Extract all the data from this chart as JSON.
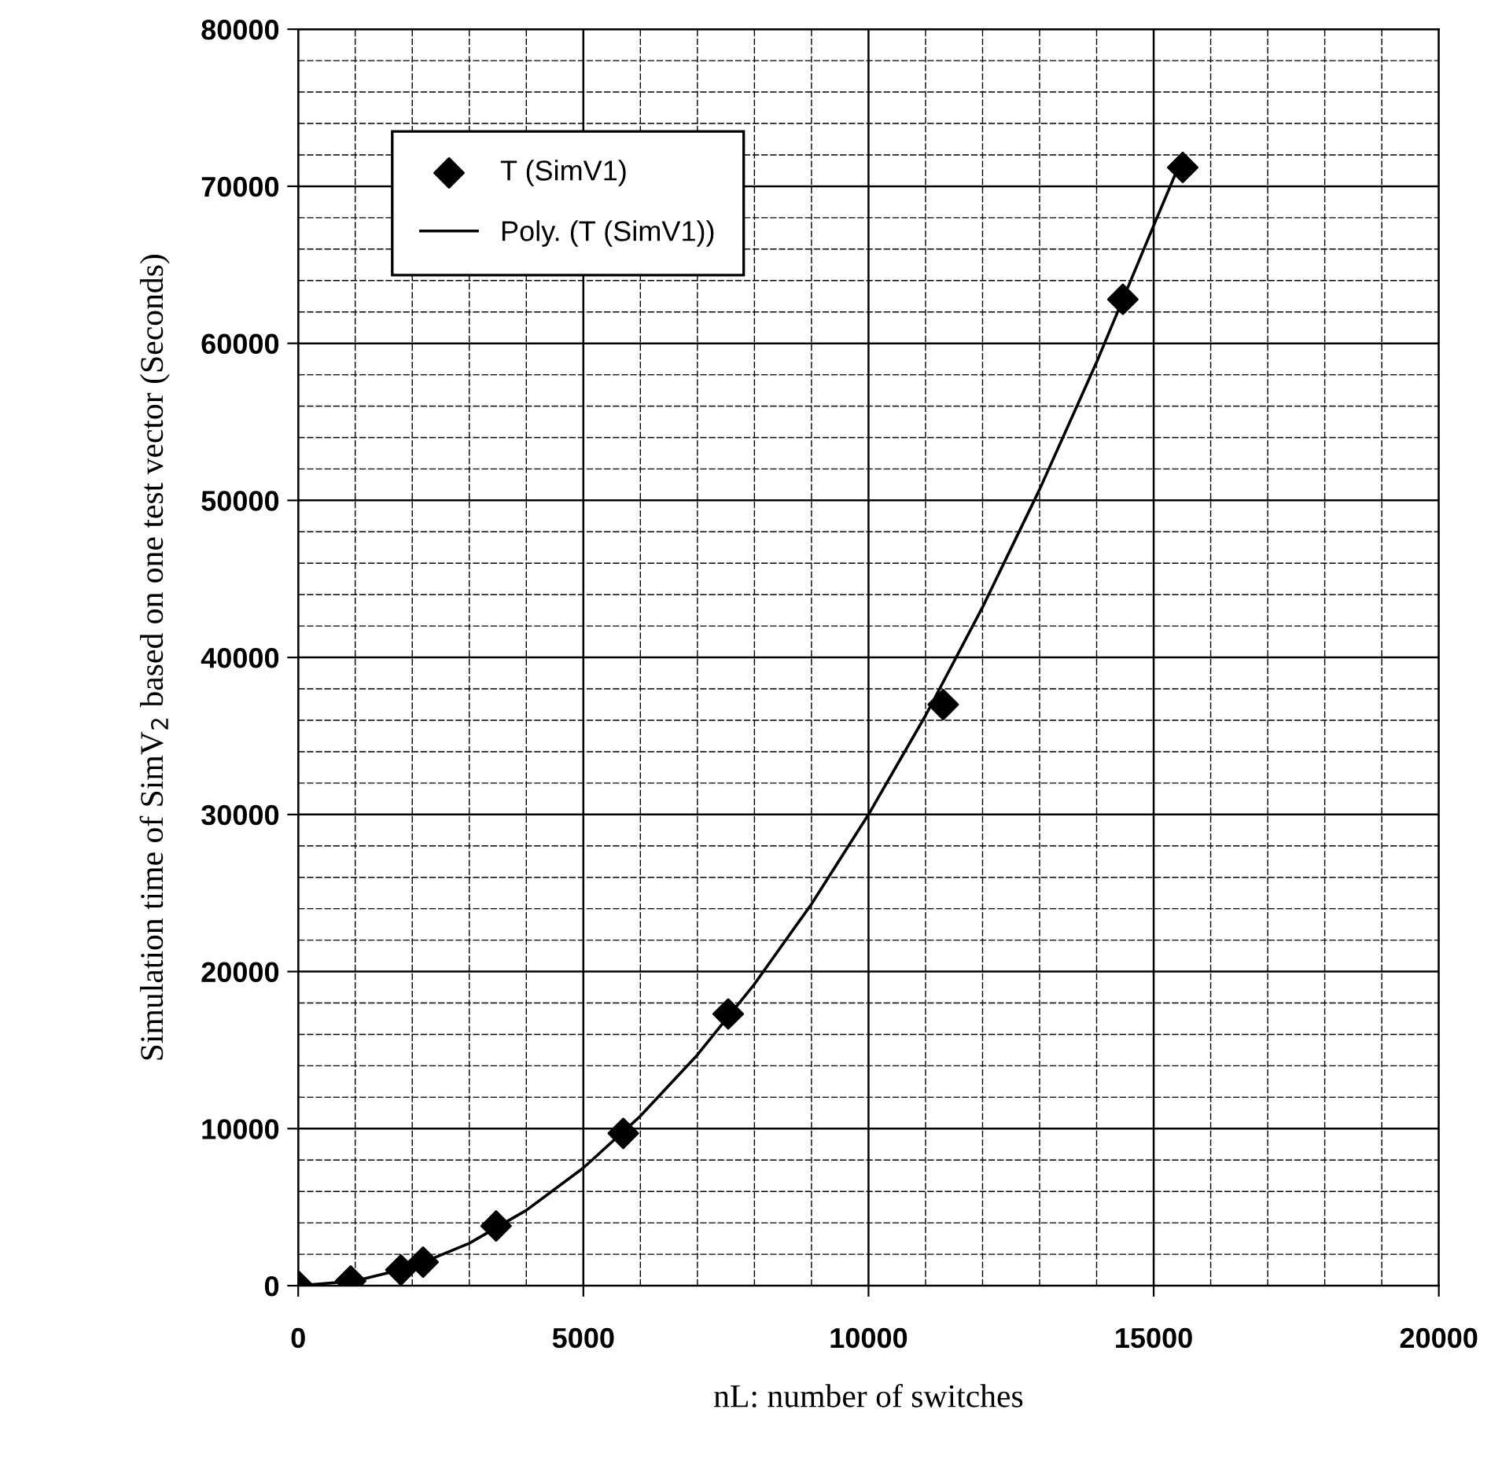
{
  "chart_data": {
    "type": "scatter",
    "xlabel": "nL: number of switches",
    "ylabel": "Simulation time of SimV$_{2}$ based on one test vector (Seconds)",
    "xlim": [
      0,
      20000
    ],
    "xticks": [
      0,
      5000,
      10000,
      15000,
      20000
    ],
    "ylim": [
      0,
      80000
    ],
    "yticks": [
      0,
      10000,
      20000,
      30000,
      40000,
      50000,
      60000,
      70000,
      80000
    ],
    "grid": true,
    "legend": "top left",
    "series": [
      {
        "name": "T (SimV1)",
        "marker": "diamond",
        "color": "#000000",
        "x": [
          0,
          920,
          1800,
          2190,
          3470,
          5700,
          7540,
          11310,
          14460,
          15510
        ],
        "values": [
          0,
          300,
          1000,
          1500,
          3800,
          9700,
          17300,
          37000,
          62800,
          71200
        ]
      },
      {
        "name": "Poly. (T (SimV1))",
        "type": "line",
        "marker": "none",
        "line_style": "solid",
        "color": "#000000",
        "x": [
          0,
          1000,
          2000,
          3000,
          4000,
          5000,
          6000,
          7000,
          8000,
          9000,
          10000,
          11000,
          12000,
          13000,
          14000,
          15000,
          15500
        ],
        "values": [
          0,
          300,
          1200,
          2700,
          4800,
          7500,
          10800,
          14700,
          19200,
          24300,
          30000,
          36300,
          43200,
          50700,
          58800,
          67500,
          71800
        ]
      }
    ]
  }
}
